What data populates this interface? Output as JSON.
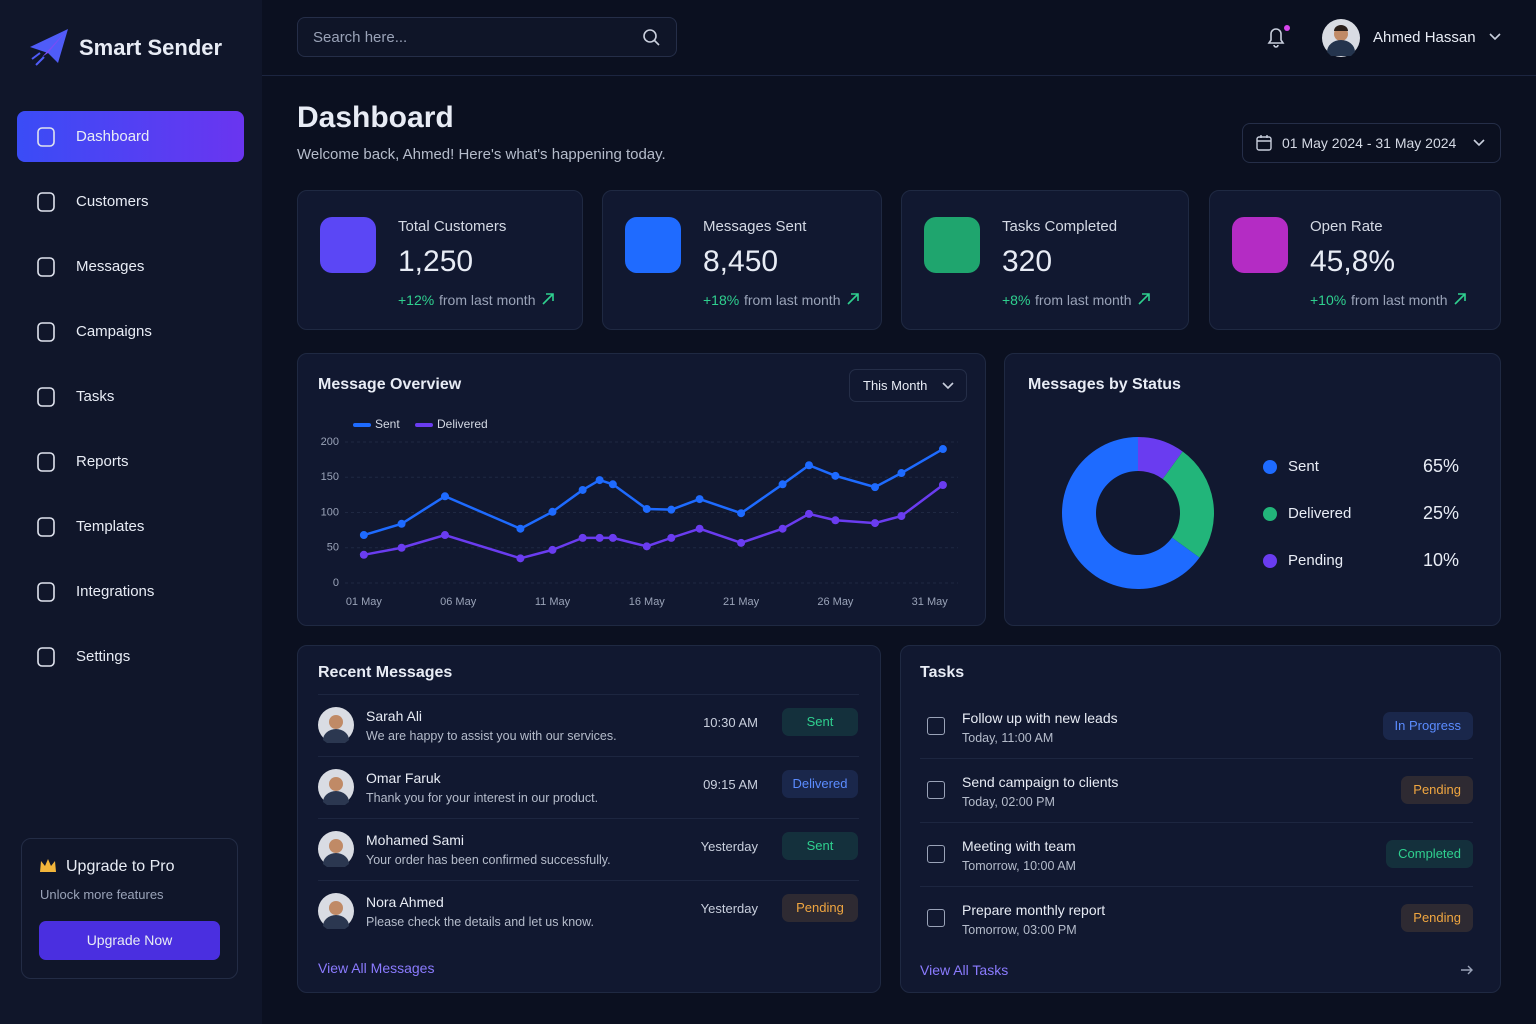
{
  "app": {
    "name": "Smart Sender"
  },
  "search": {
    "placeholder": "Search here..."
  },
  "user": {
    "name": "Ahmed Hassan"
  },
  "nav": [
    "Dashboard",
    "Customers",
    "Messages",
    "Campaigns",
    "Tasks",
    "Reports",
    "Templates",
    "Integrations",
    "Settings"
  ],
  "upgrade": {
    "title": "Upgrade to Pro",
    "subtitle": "Unlock more features",
    "button": "Upgrade Now"
  },
  "page": {
    "title": "Dashboard",
    "subtitle": "Welcome back, Ahmed! Here's what's happening today.",
    "date_range": "01 May 2024 - 31 May 2024"
  },
  "stats": [
    {
      "label": "Total Customers",
      "value": "1,250",
      "change": "+12%",
      "note": "from last month",
      "color": "#5b47f5"
    },
    {
      "label": "Messages Sent",
      "value": "8,450",
      "change": "+18%",
      "note": "from last month",
      "color": "#1f6bff"
    },
    {
      "label": "Tasks Completed",
      "value": "320",
      "change": "+8%",
      "note": "from last month",
      "color": "#1fa56e"
    },
    {
      "label": "Open Rate",
      "value": "45,8%",
      "change": "+10%",
      "note": "from last month",
      "color": "#b42cc4"
    }
  ],
  "chart_data": [
    {
      "type": "line",
      "title": "Message Overview",
      "filter": "This Month",
      "x": [
        1,
        3,
        5.3,
        9.3,
        11,
        12.6,
        13.5,
        14.2,
        16,
        17.3,
        18.8,
        21,
        23.2,
        24.6,
        26,
        28.1,
        29.5,
        31.7
      ],
      "xlim": [
        0,
        32.5
      ],
      "xticks": [
        {
          "value": 1,
          "label": "01 May"
        },
        {
          "value": 6,
          "label": "06 May"
        },
        {
          "value": 11,
          "label": "11 May"
        },
        {
          "value": 16,
          "label": "16 May"
        },
        {
          "value": 21,
          "label": "21 May"
        },
        {
          "value": 26,
          "label": "26 May"
        },
        {
          "value": 31,
          "label": "31 May"
        }
      ],
      "ylim": [
        0,
        200
      ],
      "yticks": [
        0,
        50,
        100,
        150,
        200
      ],
      "grid": true,
      "series": [
        {
          "name": "Sent",
          "color": "#1e6bff",
          "values": [
            68,
            84,
            123,
            77,
            101,
            132,
            146,
            140,
            105,
            104,
            119,
            99,
            140,
            167,
            152,
            136,
            156,
            190
          ]
        },
        {
          "name": "Delivered",
          "color": "#6a3cf0",
          "values": [
            40,
            50,
            68,
            35,
            47,
            64,
            64,
            64,
            52,
            64,
            77,
            57,
            77,
            98,
            89,
            85,
            95,
            139
          ]
        }
      ]
    },
    {
      "type": "pie",
      "title": "Messages by Status",
      "categories": [
        "Sent",
        "Delivered",
        "Pending"
      ],
      "values": [
        65,
        25,
        10
      ],
      "value_labels": [
        "65%",
        "25%",
        "10%"
      ],
      "colors": [
        "#1e6bff",
        "#22b57a",
        "#6a3cf0"
      ]
    }
  ],
  "recent_messages": {
    "title": "Recent Messages",
    "link": "View All Messages",
    "items": [
      {
        "name": "Sarah Ali",
        "text": "We are happy to assist you with our services.",
        "time": "10:30 AM",
        "status": "Sent",
        "color": "#2fd08f"
      },
      {
        "name": "Omar Faruk",
        "text": "Thank you for your interest in our product.",
        "time": "09:15 AM",
        "status": "Delivered",
        "color": "#5b8cff"
      },
      {
        "name": "Mohamed Sami",
        "text": "Your order has been confirmed successfully.",
        "time": "Yesterday",
        "status": "Sent",
        "color": "#2fd08f"
      },
      {
        "name": "Nora Ahmed",
        "text": "Please check the details and let us know.",
        "time": "Yesterday",
        "status": "Pending",
        "color": "#f0a640"
      }
    ]
  },
  "tasks": {
    "title": "Tasks",
    "link": "View All Tasks",
    "items": [
      {
        "title": "Follow up with new leads",
        "time": "Today, 11:00 AM",
        "status": "In Progress",
        "color": "#5b8cff"
      },
      {
        "title": "Send campaign to clients",
        "time": "Today, 02:00 PM",
        "status": "Pending",
        "color": "#f0a640"
      },
      {
        "title": "Meeting with team",
        "time": "Tomorrow, 10:00 AM",
        "status": "Completed",
        "color": "#2fd08f"
      },
      {
        "title": "Prepare monthly report",
        "time": "Tomorrow, 03:00 PM",
        "status": "Pending",
        "color": "#f0a640"
      }
    ]
  }
}
